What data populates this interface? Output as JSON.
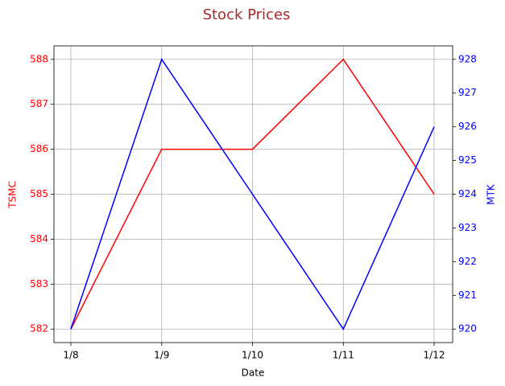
{
  "chart_data": {
    "type": "line",
    "title": "Stock Prices",
    "xlabel": "Date",
    "ylabel": "TSMC",
    "y2label": "MTK",
    "categories": [
      "1/8",
      "1/9",
      "1/10",
      "1/11",
      "1/12"
    ],
    "series": [
      {
        "name": "TSMC",
        "color": "#ff0000",
        "values": [
          582,
          586,
          586,
          588,
          585
        ]
      },
      {
        "name": "MTK",
        "color": "#0000ff",
        "values": [
          920,
          928,
          924,
          920,
          926
        ],
        "axis": "y2"
      }
    ],
    "ylim": [
      581.7,
      588.3
    ],
    "yticks": [
      582,
      583,
      584,
      585,
      586,
      587,
      588
    ],
    "y2lim": [
      919.6,
      928.4
    ],
    "y2ticks": [
      920,
      921,
      922,
      923,
      924,
      925,
      926,
      927,
      928
    ],
    "grid": true
  }
}
